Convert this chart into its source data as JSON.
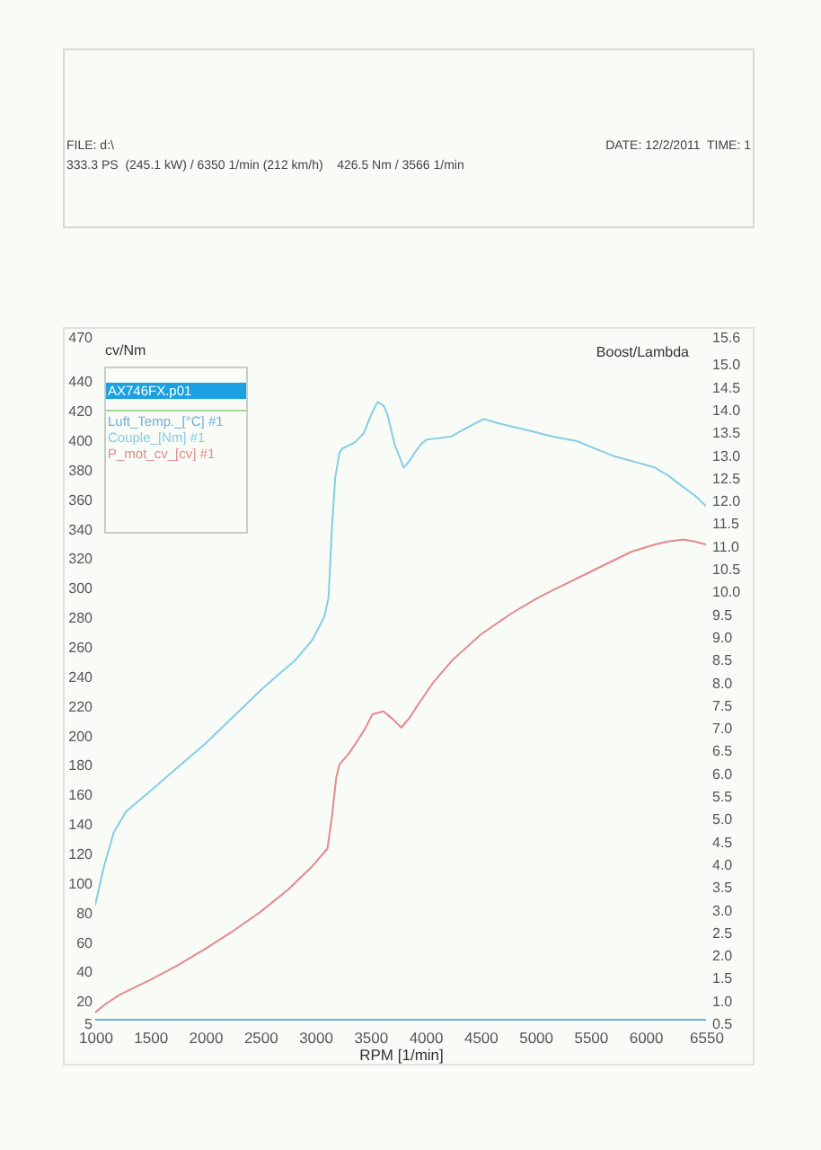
{
  "chart_data": {
    "type": "line",
    "annotations": [
      "FILE: d:\\",
      "DATE: 12/2/2011  TIME: 1",
      "333.3 PS  (245.1 kW) / 6350 1/min (212 km/h)    426.5 Nm / 3566 1/min"
    ],
    "xlabel": "RPM  [1/min]",
    "ylabel": "cv/Nm",
    "y2label": "Boost/Lambda",
    "legend_title": "AX746FX.p01",
    "legend": "top left",
    "xlim": [
      1000,
      6550
    ],
    "xticks": [
      1000,
      1500,
      2000,
      2500,
      3000,
      3500,
      4000,
      4500,
      5000,
      5500,
      6000,
      6550
    ],
    "ylim": [
      5,
      470
    ],
    "yticks": [
      5,
      20,
      40,
      60,
      80,
      100,
      120,
      140,
      160,
      180,
      200,
      220,
      240,
      260,
      280,
      300,
      320,
      340,
      360,
      380,
      400,
      420,
      440,
      470
    ],
    "y2lim": [
      0.5,
      15.6
    ],
    "y2ticks": [
      0.5,
      {
        "value": 1,
        "label": "1.0"
      },
      1.5,
      {
        "value": 2,
        "label": "2.0"
      },
      2.5,
      {
        "value": 3,
        "label": "3.0"
      },
      3.5,
      {
        "value": 4,
        "label": "4.0"
      },
      4.5,
      {
        "value": 5,
        "label": "5.0"
      },
      5.5,
      {
        "value": 6,
        "label": "6.0"
      },
      6.5,
      {
        "value": 7,
        "label": "7.0"
      },
      7.5,
      {
        "value": 8,
        "label": "8.0"
      },
      8.5,
      {
        "value": 9,
        "label": "9.0"
      },
      9.5,
      {
        "value": 10,
        "label": "10.0"
      },
      10.5,
      {
        "value": 11,
        "label": "11.0"
      },
      11.5,
      {
        "value": 12,
        "label": "12.0"
      },
      12.5,
      {
        "value": 13,
        "label": "13.0"
      },
      13.5,
      {
        "value": 14,
        "label": "14.0"
      },
      14.5,
      {
        "value": 15,
        "label": "15.0"
      },
      15.6
    ],
    "series": [
      {
        "name": "Luft_Temp._[°C] #1",
        "color": "#6fb0de",
        "x": [
          1000,
          2000,
          3000,
          4000,
          5000,
          6000,
          6550
        ],
        "values": [
          8,
          8,
          8,
          8,
          8,
          8,
          8
        ]
      },
      {
        "name": "Couple_[Nm] #1",
        "color": "#86cde6",
        "x": [
          1000,
          1080,
          1169,
          1279,
          1500,
          1750,
          2000,
          2250,
          2500,
          2650,
          2810,
          2970,
          3082,
          3120,
          3150,
          3180,
          3219,
          3245,
          3356,
          3437,
          3520,
          3566,
          3620,
          3656,
          3720,
          3803,
          3850,
          3902,
          3960,
          4011,
          4230,
          4400,
          4530,
          4667,
          4776,
          4950,
          5159,
          5377,
          5705,
          5950,
          6087,
          6200,
          6306,
          6450,
          6550
        ],
        "values": [
          86,
          112,
          135,
          149,
          163,
          179,
          195,
          213,
          231,
          241,
          251,
          265,
          281,
          294,
          340,
          375,
          392,
          395,
          399,
          405,
          420,
          426.5,
          424,
          418,
          398,
          382,
          386,
          392,
          398,
          401,
          403,
          410,
          415,
          412,
          410,
          407,
          403,
          400,
          390,
          385,
          382,
          377,
          371,
          363,
          356
        ]
      },
      {
        "name": "P_mot_cv_[cv] #1",
        "color": "#e48a8a",
        "x": [
          1000,
          1100,
          1224,
          1500,
          1750,
          2000,
          2250,
          2500,
          2750,
          2972,
          3110,
          3150,
          3190,
          3219,
          3300,
          3356,
          3450,
          3520,
          3618,
          3700,
          3781,
          3850,
          3956,
          4066,
          4250,
          4503,
          4776,
          5000,
          5159,
          5486,
          5869,
          6087,
          6200,
          6350,
          6450,
          6550
        ],
        "values": [
          13,
          19,
          25,
          35,
          45,
          56,
          68,
          81,
          96,
          112,
          124,
          145,
          172,
          181,
          188,
          194,
          205,
          215,
          217,
          212,
          206,
          212,
          224,
          236,
          252,
          269,
          283,
          293,
          299,
          311,
          325,
          330,
          332,
          333.3,
          332,
          330
        ]
      }
    ]
  }
}
